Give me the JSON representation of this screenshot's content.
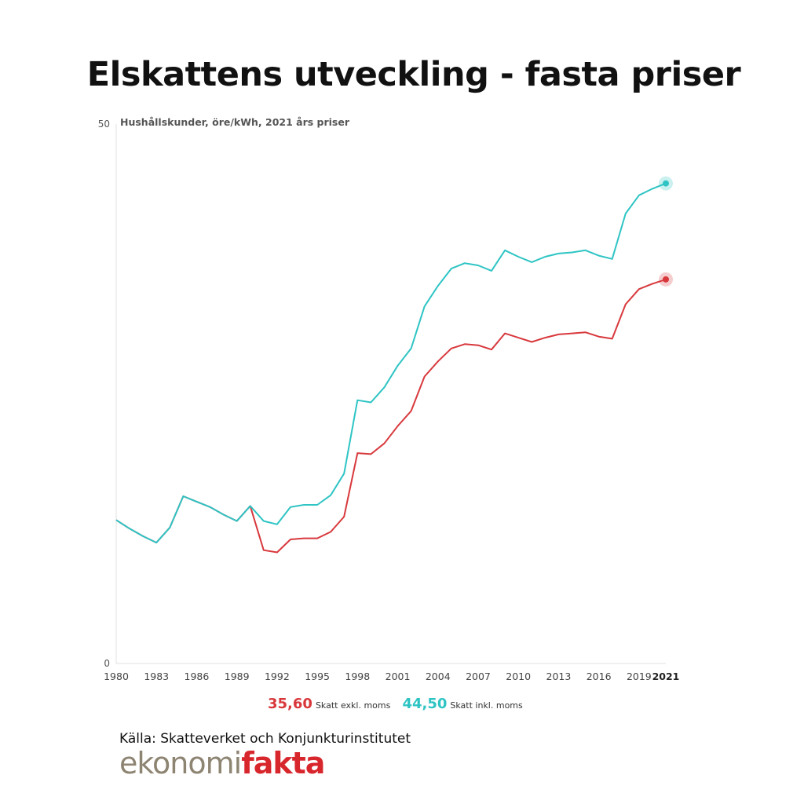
{
  "header": {
    "title": "Elskattens utveckling - fasta priser"
  },
  "chart_data": {
    "type": "line",
    "subtitle": "Hushållskunder, öre/kWh, 2021 års priser",
    "ylim": [
      0,
      50
    ],
    "xlim": [
      1980,
      2021
    ],
    "y_ticks": [
      "0",
      "50"
    ],
    "x_ticks": [
      "1980",
      "1983",
      "1986",
      "1989",
      "1992",
      "1995",
      "1998",
      "2001",
      "2004",
      "2007",
      "2010",
      "2013",
      "2016",
      "2019",
      "2021"
    ],
    "x": [
      1980,
      1981,
      1982,
      1983,
      1984,
      1985,
      1986,
      1987,
      1988,
      1989,
      1990,
      1991,
      1992,
      1993,
      1994,
      1995,
      1996,
      1997,
      1998,
      1999,
      2000,
      2001,
      2002,
      2003,
      2004,
      2005,
      2006,
      2007,
      2008,
      2009,
      2010,
      2011,
      2012,
      2013,
      2014,
      2015,
      2016,
      2017,
      2018,
      2019,
      2020,
      2021
    ],
    "series": [
      {
        "name": "Skatt exkl. moms",
        "color": "#d8383c",
        "values": [
          13.3,
          12.5,
          11.8,
          11.2,
          12.6,
          15.5,
          15.0,
          14.5,
          13.8,
          13.2,
          14.6,
          10.5,
          10.3,
          11.5,
          11.6,
          11.6,
          12.2,
          13.6,
          19.5,
          19.4,
          20.4,
          22.0,
          23.4,
          26.6,
          28.0,
          29.2,
          29.6,
          29.5,
          29.1,
          30.6,
          30.2,
          29.8,
          30.2,
          30.5,
          30.6,
          30.7,
          30.3,
          30.1,
          33.3,
          34.7,
          35.2,
          35.6
        ]
      },
      {
        "name": "Skatt inkl. moms",
        "color": "#2fc4c4",
        "values": [
          13.3,
          12.5,
          11.8,
          11.2,
          12.6,
          15.5,
          15.0,
          14.5,
          13.8,
          13.2,
          14.6,
          13.2,
          12.9,
          14.5,
          14.7,
          14.7,
          15.6,
          17.6,
          24.4,
          24.2,
          25.6,
          27.6,
          29.2,
          33.1,
          35.0,
          36.6,
          37.1,
          36.9,
          36.4,
          38.3,
          37.7,
          37.2,
          37.7,
          38.0,
          38.1,
          38.3,
          37.8,
          37.5,
          41.7,
          43.4,
          44.0,
          44.5
        ]
      }
    ],
    "legend": [
      {
        "value": "35,60",
        "label": "Skatt exkl. moms"
      },
      {
        "value": "44,50",
        "label": "Skatt inkl. moms"
      }
    ]
  },
  "footer": {
    "source": "Källa: Skatteverket och Konjunkturinstitutet",
    "logo_part1": "ekonomi",
    "logo_part2": "fakta"
  }
}
